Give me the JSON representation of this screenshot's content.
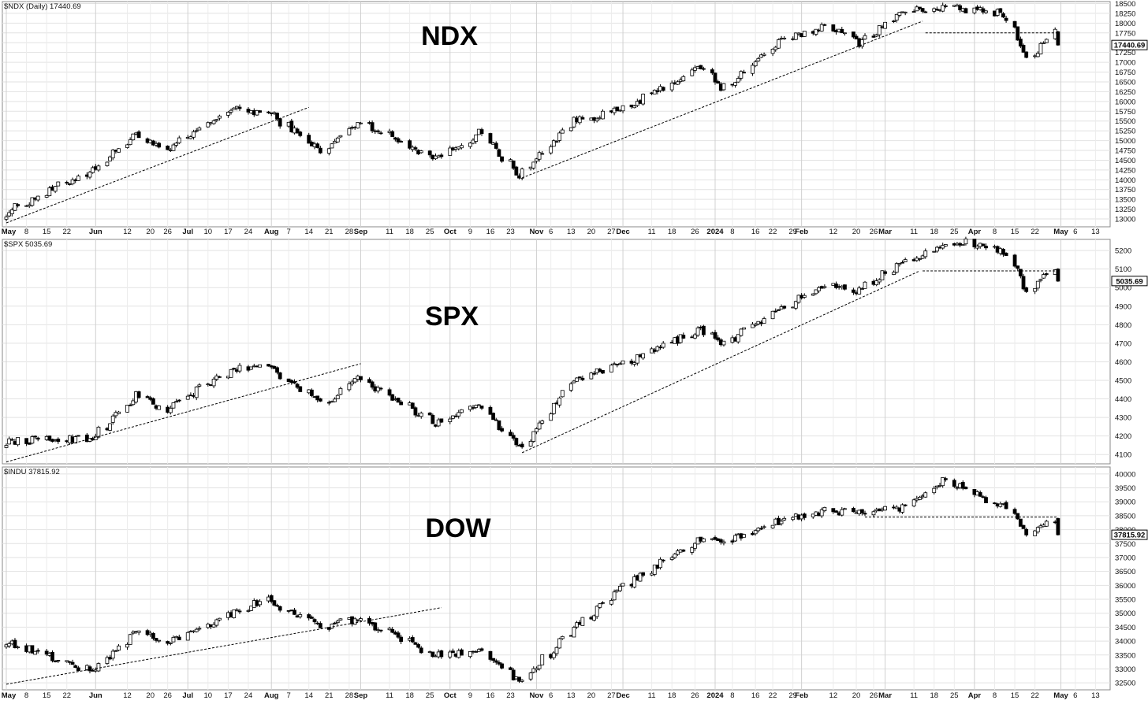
{
  "chart_data": [
    {
      "type": "candlestick",
      "symbol": "$NDX",
      "header": "$NDX (Daily) 17440.69",
      "title": "NDX",
      "last_value": "17440.69",
      "ylim": [
        12800,
        18550
      ],
      "y_ticks": [
        13000,
        13250,
        13500,
        13750,
        14000,
        14250,
        14500,
        14750,
        15000,
        15250,
        15500,
        15750,
        16000,
        16250,
        16500,
        16750,
        17000,
        17250,
        17500,
        17750,
        18000,
        18250,
        18500
      ],
      "x_tick_labels": [
        "May",
        "8",
        "15",
        "22",
        "Jun",
        "12",
        "20",
        "26",
        "Jul",
        "10",
        "17",
        "24",
        "Aug",
        "7",
        "14",
        "21",
        "28",
        "Sep",
        "11",
        "18",
        "25",
        "Oct",
        "9",
        "16",
        "23",
        "Nov",
        "6",
        "13",
        "20",
        "27",
        "Dec",
        "11",
        "18",
        "26",
        "2024",
        "8",
        "16",
        "22",
        "29",
        "Feb",
        "12",
        "20",
        "26",
        "Mar",
        "11",
        "18",
        "25",
        "Apr",
        "8",
        "15",
        "22",
        "May",
        "6",
        "13"
      ],
      "series": [
        {
          "date": "2023-05-01",
          "close": 13150
        },
        {
          "date": "2023-05-31",
          "close": 14250
        },
        {
          "date": "2023-06-15",
          "close": 15180
        },
        {
          "date": "2023-06-26",
          "close": 14700
        },
        {
          "date": "2023-07-18",
          "close": 15800
        },
        {
          "date": "2023-08-01",
          "close": 15700
        },
        {
          "date": "2023-08-18",
          "close": 14700
        },
        {
          "date": "2023-08-31",
          "close": 15500
        },
        {
          "date": "2023-09-27",
          "close": 14550
        },
        {
          "date": "2023-10-12",
          "close": 15200
        },
        {
          "date": "2023-10-26",
          "close": 14100
        },
        {
          "date": "2023-11-14",
          "close": 15500
        },
        {
          "date": "2023-12-01",
          "close": 15800
        },
        {
          "date": "2023-12-28",
          "close": 16900
        },
        {
          "date": "2024-01-04",
          "close": 16300
        },
        {
          "date": "2024-01-24",
          "close": 17500
        },
        {
          "date": "2024-02-09",
          "close": 17950
        },
        {
          "date": "2024-02-21",
          "close": 17500
        },
        {
          "date": "2024-03-07",
          "close": 18300
        },
        {
          "date": "2024-03-21",
          "close": 18400
        },
        {
          "date": "2024-04-11",
          "close": 18250
        },
        {
          "date": "2024-04-19",
          "close": 17050
        },
        {
          "date": "2024-04-29",
          "close": 17780
        },
        {
          "date": "2024-04-30",
          "close": 17440
        }
      ],
      "trendlines": [
        {
          "from": [
            "2023-05-01",
            12900
          ],
          "to": [
            "2023-08-14",
            15850
          ],
          "style": "dashed"
        },
        {
          "from": [
            "2023-10-27",
            14050
          ],
          "to": [
            "2024-03-14",
            18050
          ],
          "style": "dashed"
        },
        {
          "from": [
            "2024-03-15",
            17750
          ],
          "to": [
            "2024-04-30",
            17750
          ],
          "style": "dashed"
        }
      ]
    },
    {
      "type": "candlestick",
      "symbol": "$SPX",
      "header": "$SPX 5035.69",
      "title": "SPX",
      "last_value": "5035.69",
      "ylim": [
        4050,
        5260
      ],
      "y_ticks": [
        4100,
        4200,
        4300,
        4400,
        4500,
        4600,
        4700,
        4800,
        4900,
        5000,
        5100,
        5200
      ],
      "series": [
        {
          "date": "2023-05-01",
          "close": 4170
        },
        {
          "date": "2023-05-31",
          "close": 4190
        },
        {
          "date": "2023-06-15",
          "close": 4420
        },
        {
          "date": "2023-06-26",
          "close": 4340
        },
        {
          "date": "2023-07-18",
          "close": 4550
        },
        {
          "date": "2023-07-31",
          "close": 4590
        },
        {
          "date": "2023-08-18",
          "close": 4370
        },
        {
          "date": "2023-08-31",
          "close": 4510
        },
        {
          "date": "2023-09-27",
          "close": 4270
        },
        {
          "date": "2023-10-12",
          "close": 4380
        },
        {
          "date": "2023-10-26",
          "close": 4130
        },
        {
          "date": "2023-11-14",
          "close": 4500
        },
        {
          "date": "2023-12-01",
          "close": 4590
        },
        {
          "date": "2023-12-28",
          "close": 4780
        },
        {
          "date": "2024-01-04",
          "close": 4690
        },
        {
          "date": "2024-01-24",
          "close": 4880
        },
        {
          "date": "2024-02-09",
          "close": 5020
        },
        {
          "date": "2024-02-21",
          "close": 4980
        },
        {
          "date": "2024-03-07",
          "close": 5150
        },
        {
          "date": "2024-03-28",
          "close": 5250
        },
        {
          "date": "2024-04-11",
          "close": 5200
        },
        {
          "date": "2024-04-19",
          "close": 4970
        },
        {
          "date": "2024-04-29",
          "close": 5100
        },
        {
          "date": "2024-04-30",
          "close": 5035
        }
      ],
      "trendlines": [
        {
          "from": [
            "2023-05-01",
            4060
          ],
          "to": [
            "2023-09-01",
            4590
          ],
          "style": "dashed"
        },
        {
          "from": [
            "2023-10-27",
            4110
          ],
          "to": [
            "2024-03-13",
            5090
          ],
          "style": "dashed"
        },
        {
          "from": [
            "2024-03-14",
            5090
          ],
          "to": [
            "2024-04-30",
            5090
          ],
          "style": "dashed"
        }
      ]
    },
    {
      "type": "candlestick",
      "symbol": "$INDU",
      "header": "$INDU 37815.92",
      "title": "DOW",
      "last_value": "37815.92",
      "ylim": [
        32250,
        40250
      ],
      "y_ticks": [
        32500,
        33000,
        33500,
        34000,
        34500,
        35000,
        35500,
        36000,
        36500,
        37000,
        37500,
        38000,
        38500,
        39000,
        39500,
        40000
      ],
      "series": [
        {
          "date": "2023-05-01",
          "close": 34000
        },
        {
          "date": "2023-05-31",
          "close": 32900
        },
        {
          "date": "2023-06-15",
          "close": 34400
        },
        {
          "date": "2023-06-26",
          "close": 33900
        },
        {
          "date": "2023-07-18",
          "close": 35000
        },
        {
          "date": "2023-07-31",
          "close": 35500
        },
        {
          "date": "2023-08-18",
          "close": 34500
        },
        {
          "date": "2023-08-31",
          "close": 34800
        },
        {
          "date": "2023-09-27",
          "close": 33500
        },
        {
          "date": "2023-10-12",
          "close": 33700
        },
        {
          "date": "2023-10-26",
          "close": 32500
        },
        {
          "date": "2023-11-14",
          "close": 34400
        },
        {
          "date": "2023-12-01",
          "close": 36000
        },
        {
          "date": "2023-12-28",
          "close": 37700
        },
        {
          "date": "2024-01-04",
          "close": 37500
        },
        {
          "date": "2024-01-24",
          "close": 38300
        },
        {
          "date": "2024-02-09",
          "close": 38700
        },
        {
          "date": "2024-02-21",
          "close": 38600
        },
        {
          "date": "2024-03-07",
          "close": 38800
        },
        {
          "date": "2024-03-21",
          "close": 39800
        },
        {
          "date": "2024-04-11",
          "close": 38800
        },
        {
          "date": "2024-04-19",
          "close": 37800
        },
        {
          "date": "2024-04-29",
          "close": 38400
        },
        {
          "date": "2024-04-30",
          "close": 37815
        }
      ],
      "trendlines": [
        {
          "from": [
            "2023-05-01",
            32450
          ],
          "to": [
            "2023-09-29",
            35200
          ],
          "style": "dashed"
        },
        {
          "from": [
            "2024-02-23",
            38450
          ],
          "to": [
            "2024-04-30",
            38450
          ],
          "style": "dashed"
        }
      ]
    }
  ]
}
